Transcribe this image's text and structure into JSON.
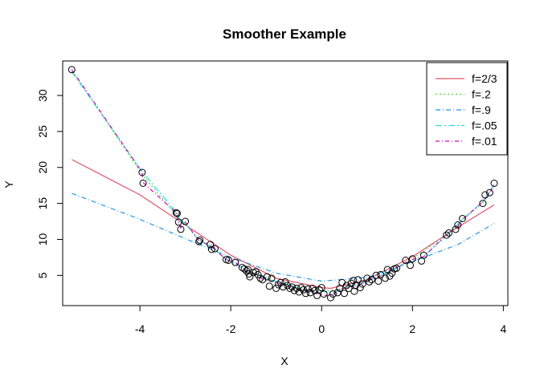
{
  "chart_data": {
    "type": "scatter",
    "title": "Smoother Example",
    "xlabel": "X",
    "ylabel": "Y",
    "xlim": [
      -5.7,
      4.1
    ],
    "ylim": [
      0.8,
      34.8
    ],
    "x_ticks": [
      -4,
      -2,
      0,
      2,
      4
    ],
    "y_ticks": [
      5,
      10,
      15,
      20,
      25,
      30
    ],
    "x_tick_labels": [
      "-4",
      "-2",
      "0",
      "2",
      "4"
    ],
    "y_tick_labels": [
      "5",
      "10",
      "15",
      "20",
      "25",
      "30"
    ],
    "grid": false,
    "legend_position": "top-right",
    "points": {
      "x": [
        -5.5,
        -3.95,
        -3.93,
        -3.2,
        -3.18,
        -3.15,
        -3.1,
        -3.0,
        -2.7,
        -2.68,
        -2.45,
        -2.42,
        -2.35,
        -2.1,
        -2.05,
        -1.9,
        -1.75,
        -1.7,
        -1.65,
        -1.62,
        -1.6,
        -1.58,
        -1.5,
        -1.45,
        -1.4,
        -1.35,
        -1.3,
        -1.2,
        -1.15,
        -1.1,
        -1.0,
        -0.95,
        -0.9,
        -0.85,
        -0.8,
        -0.75,
        -0.7,
        -0.65,
        -0.6,
        -0.55,
        -0.5,
        -0.45,
        -0.4,
        -0.35,
        -0.3,
        -0.25,
        -0.2,
        -0.15,
        -0.1,
        -0.05,
        0.0,
        0.05,
        0.2,
        0.25,
        0.35,
        0.4,
        0.45,
        0.5,
        0.55,
        0.6,
        0.65,
        0.7,
        0.72,
        0.75,
        0.8,
        0.85,
        0.9,
        1.0,
        1.05,
        1.1,
        1.2,
        1.25,
        1.3,
        1.4,
        1.45,
        1.5,
        1.55,
        1.6,
        1.65,
        1.85,
        1.95,
        2.0,
        2.2,
        2.25,
        2.75,
        2.8,
        2.95,
        3.0,
        3.1,
        3.55,
        3.6,
        3.7,
        3.8
      ],
      "y": [
        33.6,
        19.3,
        17.8,
        13.7,
        13.6,
        12.4,
        11.4,
        12.5,
        9.7,
        9.9,
        9.3,
        8.6,
        8.7,
        7.2,
        7.1,
        6.8,
        6.1,
        5.9,
        5.6,
        5.8,
        5.2,
        4.8,
        5.4,
        5.5,
        5.1,
        4.6,
        4.4,
        4.8,
        3.5,
        4.6,
        3.2,
        3.7,
        4.0,
        3.4,
        4.1,
        3.6,
        3.2,
        3.4,
        2.9,
        3.2,
        2.7,
        3.3,
        3.0,
        2.5,
        3.1,
        2.6,
        3.2,
        2.9,
        2.2,
        3.0,
        3.3,
        2.4,
        1.9,
        2.4,
        2.6,
        3.2,
        4.0,
        2.5,
        3.6,
        3.2,
        3.9,
        4.3,
        2.8,
        3.6,
        4.4,
        3.3,
        3.8,
        4.6,
        4.1,
        4.4,
        5.0,
        4.2,
        5.1,
        4.6,
        5.8,
        4.9,
        5.3,
        5.9,
        6.0,
        7.1,
        6.4,
        7.3,
        7.0,
        7.8,
        10.6,
        10.9,
        11.4,
        12.0,
        12.9,
        15.0,
        16.2,
        16.5,
        17.8
      ]
    },
    "series": [
      {
        "name": "f=2/3",
        "color": "#df536b",
        "dash": "none",
        "x": [
          -5.5,
          -4.0,
          -3.0,
          -2.0,
          -1.0,
          0.0,
          0.2,
          1.0,
          2.0,
          3.0,
          3.8
        ],
        "y": [
          21.1,
          16.2,
          12.0,
          7.8,
          4.6,
          3.3,
          3.2,
          4.4,
          7.6,
          11.7,
          14.8
        ]
      },
      {
        "name": "f=.2",
        "color": "#61d04f",
        "dash": "2,3",
        "x": [
          -5.5,
          -3.95,
          -3.2,
          -3.0,
          -2.7,
          -2.4,
          -2.1,
          -1.6,
          -1.0,
          -0.5,
          0.0,
          0.5,
          1.0,
          1.5,
          2.0,
          2.5,
          3.0,
          3.55,
          3.8
        ],
        "y": [
          33.5,
          19.0,
          13.4,
          12.2,
          10.0,
          8.8,
          7.2,
          5.6,
          4.1,
          3.2,
          2.8,
          3.2,
          4.2,
          5.4,
          7.3,
          9.5,
          12.0,
          15.2,
          17.6
        ]
      },
      {
        "name": "f=.9",
        "color": "#2297e6",
        "dash": "6,3,1,3",
        "x": [
          -5.5,
          -4.0,
          -3.0,
          -2.0,
          -1.0,
          0.0,
          1.0,
          2.0,
          3.0,
          3.8
        ],
        "y": [
          16.4,
          12.8,
          10.1,
          7.5,
          5.3,
          4.2,
          4.7,
          6.9,
          9.3,
          12.2
        ]
      },
      {
        "name": "f=.05",
        "color": "#28e2e5",
        "dash": "8,3,2,3",
        "x": [
          -5.5,
          -3.95,
          -3.2,
          -3.1,
          -3.0,
          -2.7,
          -2.4,
          -2.1,
          -1.6,
          -1.2,
          -0.8,
          -0.4,
          0.0,
          0.3,
          0.6,
          1.0,
          1.4,
          1.8,
          2.2,
          2.8,
          3.1,
          3.55,
          3.8
        ],
        "y": [
          33.3,
          19.4,
          13.8,
          12.4,
          12.2,
          9.8,
          8.9,
          7.2,
          5.6,
          4.5,
          3.8,
          3.0,
          2.8,
          2.7,
          3.6,
          4.2,
          5.3,
          6.6,
          7.4,
          10.8,
          12.8,
          15.2,
          17.6
        ]
      },
      {
        "name": "f=.01",
        "color": "#cd0bbc",
        "dash": "5,3,1,3",
        "x": [
          -5.5,
          -3.95,
          -3.93,
          -3.2,
          -3.15,
          -3.1,
          -3.0,
          -2.7,
          -2.45,
          -2.35,
          -2.1,
          -1.9,
          -1.7,
          -1.6,
          -1.5,
          -1.3,
          -1.1,
          -0.9,
          -0.7,
          -0.5,
          -0.3,
          -0.1,
          0.1,
          0.2,
          0.4,
          0.6,
          0.8,
          1.0,
          1.2,
          1.4,
          1.6,
          1.85,
          2.0,
          2.25,
          2.75,
          3.0,
          3.1,
          3.55,
          3.7,
          3.8
        ],
        "y": [
          33.6,
          19.3,
          17.9,
          13.7,
          12.4,
          11.6,
          12.4,
          9.8,
          9.2,
          8.6,
          7.2,
          6.8,
          5.9,
          5.3,
          5.3,
          4.5,
          4.2,
          3.8,
          3.4,
          3.0,
          3.0,
          2.5,
          2.2,
          2.1,
          3.0,
          3.4,
          3.6,
          4.3,
          4.6,
          5.2,
          5.9,
          6.8,
          7.2,
          7.6,
          10.7,
          11.8,
          12.8,
          15.2,
          16.4,
          17.8
        ]
      }
    ]
  }
}
